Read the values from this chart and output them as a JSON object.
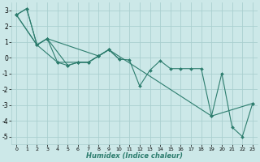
{
  "xlabel": "Humidex (Indice chaleur)",
  "background_color": "#cce8e8",
  "grid_color": "#aacfcf",
  "line_color": "#2d7d6e",
  "marker_color": "#2d7d6e",
  "xlim": [
    -0.5,
    23.5
  ],
  "ylim": [
    -5.5,
    3.5
  ],
  "xticks": [
    0,
    1,
    2,
    3,
    4,
    5,
    6,
    7,
    8,
    9,
    10,
    11,
    12,
    13,
    14,
    15,
    16,
    17,
    18,
    19,
    20,
    21,
    22,
    23
  ],
  "yticks": [
    -5,
    -4,
    -3,
    -2,
    -1,
    0,
    1,
    2,
    3
  ],
  "lines": [
    {
      "x": [
        0,
        1,
        2,
        3,
        4,
        5,
        6,
        7,
        8,
        9,
        10,
        11,
        12,
        13,
        14,
        15,
        16,
        17,
        18,
        19,
        20,
        21,
        22,
        23
      ],
      "y": [
        2.7,
        3.1,
        0.8,
        1.2,
        -0.3,
        -0.5,
        -0.3,
        -0.3,
        0.1,
        0.5,
        -0.1,
        -0.15,
        -1.8,
        -0.8,
        -0.2,
        -0.7,
        -0.7,
        -0.7,
        -0.7,
        -3.7,
        -1.0,
        -4.4,
        -5.0,
        -2.9
      ]
    },
    {
      "x": [
        0,
        2,
        3,
        5,
        6,
        7,
        8,
        9
      ],
      "y": [
        2.7,
        0.8,
        1.2,
        -0.5,
        -0.3,
        -0.3,
        0.1,
        0.5
      ]
    },
    {
      "x": [
        0,
        2,
        4,
        6,
        7,
        8,
        9,
        10
      ],
      "y": [
        2.7,
        0.8,
        -0.3,
        -0.3,
        -0.3,
        0.1,
        0.5,
        -0.1
      ]
    },
    {
      "x": [
        0,
        1,
        2,
        3,
        8,
        9,
        19,
        23
      ],
      "y": [
        2.7,
        3.1,
        0.8,
        1.2,
        0.1,
        0.5,
        -3.7,
        -2.9
      ]
    }
  ]
}
